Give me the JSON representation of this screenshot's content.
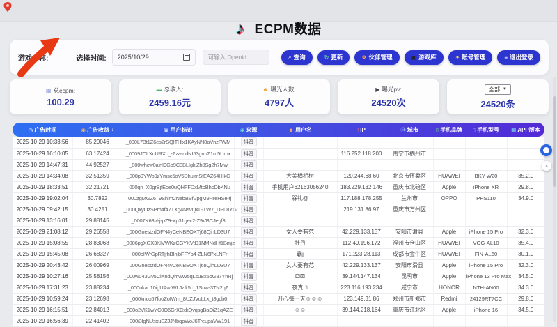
{
  "page": {
    "title": "ECPM数据"
  },
  "filters": {
    "game_name_label": "游戏名称:",
    "time_label": "选择时间:",
    "date_value": "2025/10/29",
    "openid_placeholder": "可输入 Openid"
  },
  "toolbar": {
    "buttons": [
      {
        "name": "query",
        "icon": "⌕",
        "icon_color": "#ffffff",
        "label": "查询"
      },
      {
        "name": "refresh",
        "icon": "↻",
        "icon_color": "#7cfc9a",
        "label": "更新"
      },
      {
        "name": "partner-management",
        "icon": "❖",
        "icon_color": "#ff9f43",
        "label": "伙伴管理"
      },
      {
        "name": "game-library",
        "icon": "▣",
        "icon_color": "#23232a",
        "label": "游戏库"
      },
      {
        "name": "account-management",
        "icon": "✦",
        "icon_color": "#ffd94d",
        "label": "账号管理"
      },
      {
        "name": "logout",
        "icon": "≡",
        "icon_color": "#ffffff",
        "label": "退出登录"
      }
    ]
  },
  "stats": {
    "cards": [
      {
        "icon": "▦",
        "icon_color": "#8e9bd8",
        "label": "总ecpm:",
        "value": "100.29"
      },
      {
        "icon": "▬",
        "icon_color": "#49b86b",
        "label": "总收入:",
        "value": "2459.16元"
      },
      {
        "icon": "☻",
        "icon_color": "#f0a13c",
        "label": "曝光人数:",
        "value": "4797人"
      },
      {
        "icon": "▶",
        "icon_color": "#44444c",
        "label": "曝光pv:",
        "value": "24520次"
      },
      {
        "select_value": "全部",
        "value": "24520条"
      }
    ]
  },
  "table": {
    "columns": [
      {
        "icon": "◷",
        "icon_color": "#ffffff",
        "label": "广告时间"
      },
      {
        "icon": "◉",
        "icon_color": "#ffc24d",
        "label": "广告收益",
        "sort": "↓"
      },
      {
        "icon": "▣",
        "icon_color": "#cfd8ff",
        "label": "用户标识"
      },
      {
        "icon": "◉",
        "icon_color": "#6ee7e0",
        "label": "来源"
      },
      {
        "icon": "☻",
        "icon_color": "#ffb15e",
        "label": "用户名"
      },
      {
        "icon": "!",
        "icon_color": "#ff6b6b",
        "label": "IP"
      },
      {
        "icon": "Ⓜ",
        "icon_color": "#9fd0ff",
        "label": "城市"
      },
      {
        "icon": "▯",
        "icon_color": "#7de28f",
        "label": "手机品牌"
      },
      {
        "icon": "▯",
        "icon_color": "#8fc1ff",
        "label": "手机型号"
      },
      {
        "icon": "▦",
        "icon_color": "#7fe3f2",
        "label": "APP版本"
      }
    ],
    "rows": [
      {
        "time": "2025-10-29 10:33:56",
        "revenue": "85.29046",
        "openid": "_000L7Bt1Z6es2rSQITHlx1KAyNN8aVnzFWM",
        "source": "抖音",
        "username": "",
        "ip": "",
        "city": "",
        "brand": "",
        "model": "",
        "version": ""
      },
      {
        "time": "2025-10-29 16:10:05",
        "revenue": "63.17424",
        "openid": "_0009JCLXcURXc_-Zza-ndNI53gnuZ1m5Umx",
        "source": "抖音",
        "username": "",
        "ip": "116.252.118.200",
        "city": "南宁市横州市",
        "brand": "",
        "model": "",
        "version": ""
      },
      {
        "time": "2025-10-29 14:47:31",
        "revenue": "44.92527",
        "openid": "_000whcw0ainI9Gb9C3BLIgklZh0Sg2h7Mw",
        "source": "抖音",
        "username": "",
        "ip": "",
        "city": "",
        "brand": "",
        "model": "",
        "version": ""
      },
      {
        "time": "2025-10-29 14:34:08",
        "revenue": "32.51359",
        "openid": "_000p9YWo9zYmsc5oV5DhuimSfEAZ64HIkC",
        "source": "抖音",
        "username": "大美横相树",
        "ip": "120.244.68.60",
        "city": "北京市怀柔区",
        "brand": "HUAWEI",
        "model": "BKY-W20",
        "version": "35.2.0"
      },
      {
        "time": "2025-10-29 18:33:51",
        "revenue": "32.21721",
        "openid": "_000qn_X0grBjfEoe0uQHFFDxMtbBhcDbKNu",
        "source": "抖音",
        "username": "手机用户62163056240",
        "ip": "183.229.132.146",
        "city": "重庆市北碚区",
        "brand": "Apple",
        "model": "iPhone XR",
        "version": "29.8.0"
      },
      {
        "time": "2025-10-29 19:02:04",
        "revenue": "30.7892",
        "openid": "_000zgMGZ6_9Shlm2NebBSfVpgM9RreHSe-tj",
        "source": "抖音",
        "username": "槑礼@",
        "ip": "117.188.178.255",
        "city": "兰州市",
        "brand": "OPPO",
        "model": "PHS110",
        "version": "34.9.0"
      },
      {
        "time": "2025-10-29 09:42:15",
        "revenue": "30.4251",
        "openid": "_000QxyOzSPm4f47TXg4NsvQ40-TW7_DPu8YG",
        "source": "抖音",
        "username": "",
        "ip": "219.131.86.97",
        "city": "重庆市万州区",
        "brand": "",
        "model": "",
        "version": ""
      },
      {
        "time": "2025-10-29 13:16:01",
        "revenue": "29.88145",
        "openid": "_0007K63vl-j-pZ9-Xp31gec2-Z9VBCJegf3",
        "source": "抖音",
        "username": "",
        "ip": "",
        "city": "",
        "brand": "",
        "model": "",
        "version": ""
      },
      {
        "time": "2025-10-29 21:08:12",
        "revenue": "29.26558",
        "openid": "_000GnestzdOFN4yCeNBEOXTj68QihLD3U7",
        "source": "抖音",
        "username": "女人要有范",
        "ip": "42.229.133.137",
        "city": "安阳市滑县",
        "brand": "Apple",
        "model": "iPhone 15 Pro",
        "version": "32.3.0"
      },
      {
        "time": "2025-10-29 15:08:55",
        "revenue": "28.83068",
        "openid": "_0006pgXGX3KIVWKzCGYXVtD1NMNdHf1Bmjz",
        "source": "抖音",
        "username": "牡丹",
        "ip": "112.49.196.172",
        "city": "福州市仓山区",
        "brand": "HUAWEI",
        "model": "VOG-AL10",
        "version": "35.4.0"
      },
      {
        "time": "2025-10-29 15:45:08",
        "revenue": "26.68327",
        "openid": "_000oIWrGpRTjfhBInjbFFYb4-ZLN6PxLNFr",
        "source": "抖音",
        "username": "霸j",
        "ip": "171.223.28.113",
        "city": "成都市金牛区",
        "brand": "HUAWEI",
        "model": "FIN-AL60",
        "version": "30.1.0"
      },
      {
        "time": "2025-10-29 20:43:42",
        "revenue": "26.00969",
        "openid": "_000GnestzdOFN4yCeNBEOXTj68QihLD3U7",
        "source": "抖音",
        "username": "女人要有范",
        "ip": "42.229.133.137",
        "city": "安阳市滑县",
        "brand": "Apple",
        "model": "iPhone 15 Pro",
        "version": "32.3.0"
      },
      {
        "time": "2025-10-29 10:27:16",
        "revenue": "25.58156",
        "openid": "_000w043Gv5CiXndQmwW5qLsuBx5bG87YnRj",
        "source": "抖音",
        "username": "⚁⚄",
        "ip": "39.144.147.134",
        "city": "昆明市",
        "brand": "Apple",
        "model": "iPhone 13 Pro Max",
        "version": "34.5.0"
      },
      {
        "time": "2025-10-29 17:31:23",
        "revenue": "23.88234",
        "openid": "_000ukaL10igUAwIWLJzlk5c_1Snw-3TN2qZ",
        "source": "抖音",
        "username": "夜真☽",
        "ip": "223.116.193.234",
        "city": "咸宁市",
        "brand": "HONOR",
        "model": "NTH-AN00",
        "version": "34.3.0"
      },
      {
        "time": "2025-10-29 10:59:24",
        "revenue": "23.12698",
        "openid": "_000knox67fooZoIWm_8UZJVuLLx_t8gcb6",
        "source": "抖音",
        "username": "开心每一天☺☺☺",
        "ip": "123.149.31.86",
        "city": "郑州市新郑市",
        "brand": "Redmi",
        "model": "24129RT7CC",
        "version": "29.8.0"
      },
      {
        "time": "2025-10-29 16:15:51",
        "revenue": "22.84012",
        "openid": "_000o2VK1wYC0O6GrXCxkQvqsgBaOiZ1qAZE",
        "source": "抖音",
        "username": "☺☺",
        "ip": "39.144.218.164",
        "city": "重庆市江北区",
        "brand": "Apple",
        "model": "iPhone 16",
        "version": "34.5.0"
      },
      {
        "time": "2025-10-29 16:56:39",
        "revenue": "22.41402",
        "openid": "_000i3IgNUsxuEZJJNbqpWoJ6TreupaVW191",
        "source": "抖音",
        "username": "",
        "ip": "",
        "city": "",
        "brand": "",
        "model": "",
        "version": ""
      }
    ]
  },
  "floating": {
    "scroll_top_glyph": "∧"
  }
}
